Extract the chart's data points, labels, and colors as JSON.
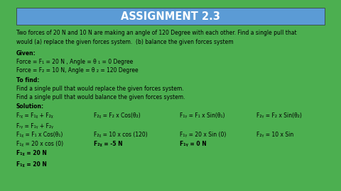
{
  "title": "ASSIGNMENT 2.3",
  "bg_outer": "#4caf50",
  "bg_inner": "#ffffff",
  "title_bg": "#5b9bd5",
  "title_color": "#ffffff",
  "title_fontsize": 10.5,
  "body_fontsize": 5.5,
  "text_color": "#000000",
  "problem_line1": "Two forces of 20 N and 10 N are making an angle of 120 Degree with each other. Find a single pull that",
  "problem_line2": "would (a) replace the given forces system.  (b) balance the given forces system",
  "given_label": "Given:",
  "given_line1": "Force = F₁ = 20 N , Angle = θ ₁ = 0 Degree",
  "given_line2": "Force = F₂ = 10 N, Angle = θ ₂ = 120 Degree",
  "tofind_label": "To find:",
  "tofind_line1": "Find a single pull that would replace the given forces system.",
  "tofind_line2": "Find a single pull that would balance the given forces system.",
  "solution_label": "Solution:",
  "sol_eq1": "Fᵣᵪ = F₁ᵪ + F₂ᵪ",
  "sol_eq2": "Fᵣᵧ = F₁ᵧ + F₂ᵧ",
  "col1_r1": "F₁ᵪ = F₁ x Cos(θ₁)",
  "col1_r2": "F₁ᵪ = 20 x cos (0)",
  "col1_r3": "F₁ᵪ = 20 N",
  "col2_r1": "F₂ᵪ = F₂ x Cos(θ₂)",
  "col2_r2": "F₂ᵪ = 10 x cos (120)",
  "col2_r3": "F₂ᵪ = -5 N",
  "col3_r1": "F₁ᵧ = F₁ x Sin(θ₁)",
  "col3_r2": "F₁ᵧ = 20 x Sin (0)",
  "col3_r3": "F₁ᵧ = 0 N",
  "col4_r1": "F₂ᵧ = F₂ x Sin(θ₂)",
  "col4_r2": "F₂ᵧ = 10 x Sin",
  "final_line": "F₁ᵪ = 20 N"
}
